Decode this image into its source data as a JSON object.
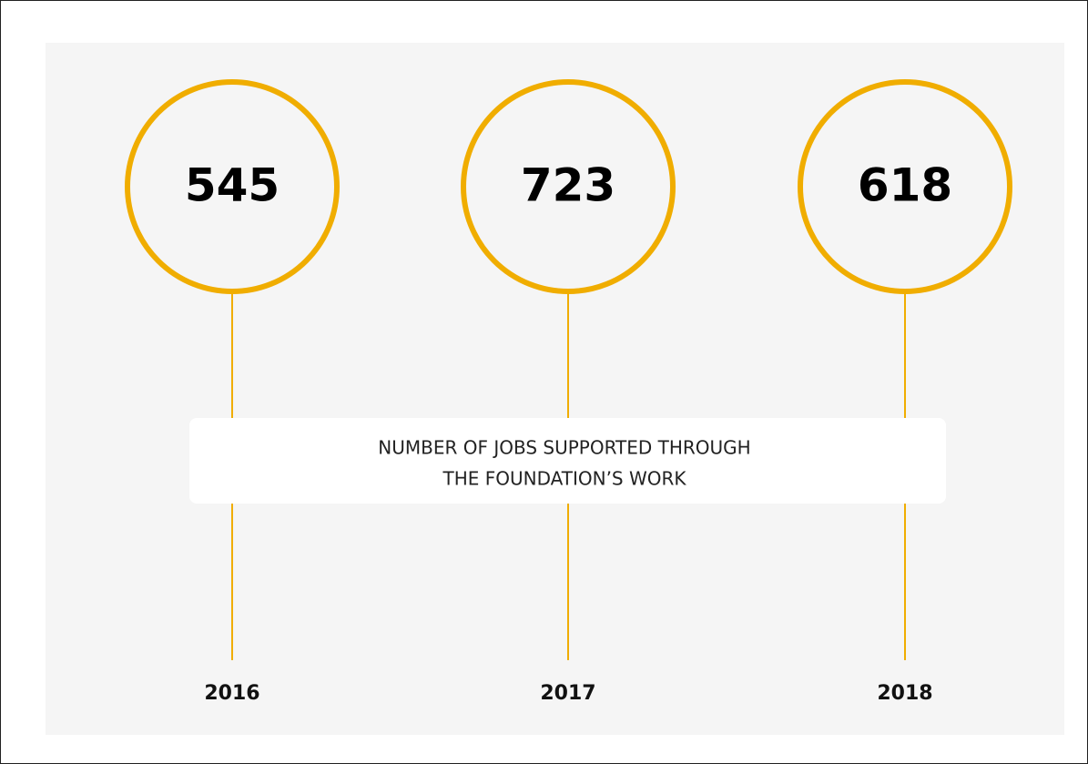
{
  "items": [
    {
      "value": 545,
      "year": "2016"
    },
    {
      "value": 723,
      "year": "2017"
    },
    {
      "value": 618,
      "year": "2018"
    }
  ],
  "caption": [
    "NUMBER OF JOBS SUPPORTED THROUGH",
    "THE FOUNDATION’S WORK"
  ]
}
